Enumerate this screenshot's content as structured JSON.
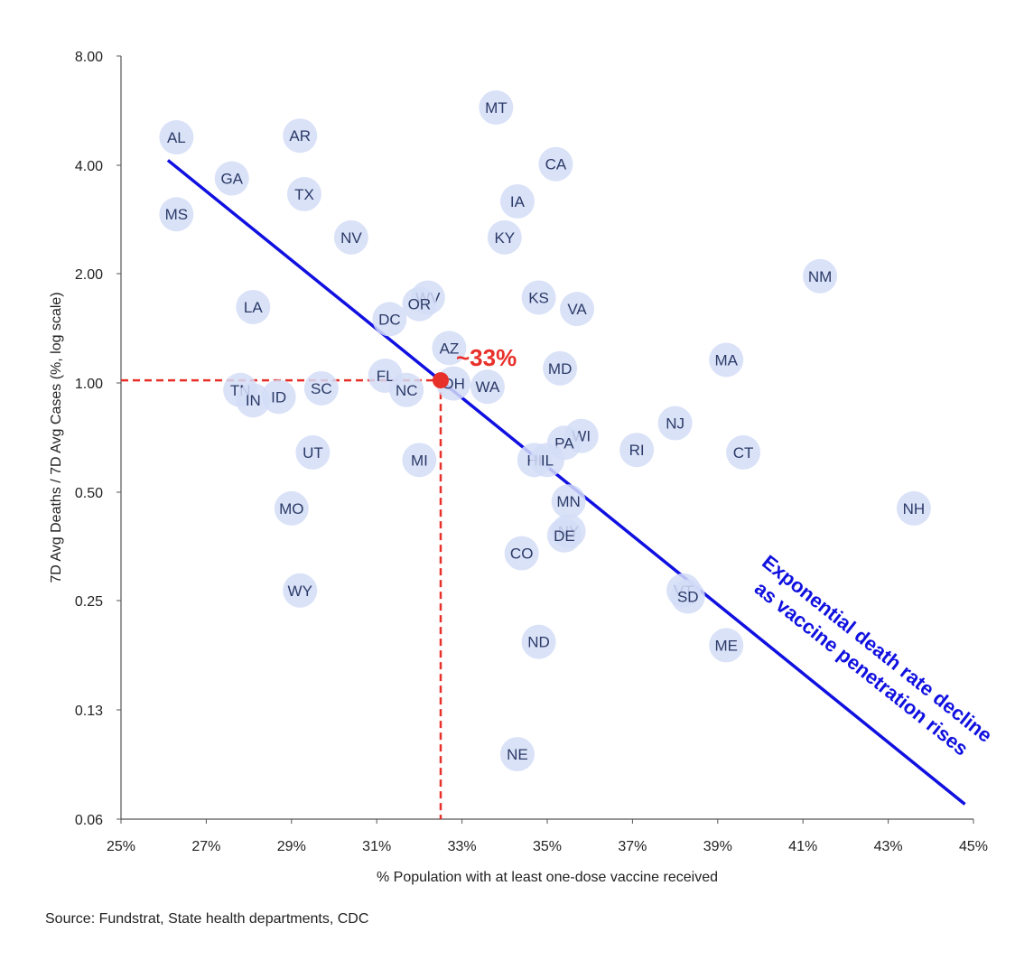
{
  "chart_data": {
    "type": "scatter",
    "xlabel": "% Population with at least one-dose vaccine received",
    "ylabel": "7D Avg Deaths / 7D Avg Cases (%, log scale)",
    "yscale": "log",
    "xlim": [
      25,
      45
    ],
    "ylim": [
      0.06,
      8.0
    ],
    "x_ticks": [
      "25%",
      "27%",
      "29%",
      "31%",
      "33%",
      "35%",
      "37%",
      "39%",
      "41%",
      "43%",
      "45%"
    ],
    "x_tick_values": [
      25,
      27,
      29,
      31,
      33,
      35,
      37,
      39,
      41,
      43,
      45
    ],
    "y_ticks": [
      "8.00",
      "4.00",
      "2.00",
      "1.00",
      "0.50",
      "0.25",
      "0.13",
      "0.06"
    ],
    "y_tick_values": [
      8.0,
      4.0,
      2.0,
      1.0,
      0.5,
      0.25,
      0.13,
      0.06
    ],
    "grid": false,
    "colors": {
      "point": "#d3ddf7",
      "point_text": "#2b3a67",
      "trend": "#1010e0",
      "highlight": "#e8302a"
    },
    "points": [
      {
        "label": "AL",
        "x": 26.3,
        "y": 4.75
      },
      {
        "label": "AR",
        "x": 29.2,
        "y": 4.8
      },
      {
        "label": "MT",
        "x": 33.8,
        "y": 5.75
      },
      {
        "label": "CA",
        "x": 35.2,
        "y": 4.0
      },
      {
        "label": "GA",
        "x": 27.6,
        "y": 3.65
      },
      {
        "label": "TX",
        "x": 29.3,
        "y": 3.3
      },
      {
        "label": "IA",
        "x": 34.3,
        "y": 3.15
      },
      {
        "label": "MS",
        "x": 26.3,
        "y": 2.9
      },
      {
        "label": "NV",
        "x": 30.4,
        "y": 2.5
      },
      {
        "label": "KY",
        "x": 34.0,
        "y": 2.5
      },
      {
        "label": "NM",
        "x": 41.4,
        "y": 1.95
      },
      {
        "label": "WV",
        "x": 32.2,
        "y": 1.7
      },
      {
        "label": "OR",
        "x": 32.0,
        "y": 1.63
      },
      {
        "label": "KS",
        "x": 34.8,
        "y": 1.7
      },
      {
        "label": "LA",
        "x": 28.1,
        "y": 1.6
      },
      {
        "label": "VA",
        "x": 35.7,
        "y": 1.58
      },
      {
        "label": "DC",
        "x": 31.3,
        "y": 1.48
      },
      {
        "label": "AZ",
        "x": 32.7,
        "y": 1.23
      },
      {
        "label": "MA",
        "x": 39.2,
        "y": 1.14
      },
      {
        "label": "MD",
        "x": 35.3,
        "y": 1.08
      },
      {
        "label": "FL",
        "x": 31.2,
        "y": 1.03
      },
      {
        "label": "OH",
        "x": 32.8,
        "y": 0.98
      },
      {
        "label": "WA",
        "x": 33.6,
        "y": 0.96
      },
      {
        "label": "SC",
        "x": 29.7,
        "y": 0.95
      },
      {
        "label": "NC",
        "x": 31.7,
        "y": 0.94
      },
      {
        "label": "TN",
        "x": 27.8,
        "y": 0.94
      },
      {
        "label": "ID",
        "x": 28.7,
        "y": 0.9
      },
      {
        "label": "IN",
        "x": 28.1,
        "y": 0.88
      },
      {
        "label": "NJ",
        "x": 38.0,
        "y": 0.76
      },
      {
        "label": "WI",
        "x": 35.8,
        "y": 0.7
      },
      {
        "label": "PA",
        "x": 35.4,
        "y": 0.67
      },
      {
        "label": "RI",
        "x": 37.1,
        "y": 0.64
      },
      {
        "label": "CT",
        "x": 39.6,
        "y": 0.63
      },
      {
        "label": "UT",
        "x": 29.5,
        "y": 0.63
      },
      {
        "label": "MI",
        "x": 32.0,
        "y": 0.6
      },
      {
        "label": "HI",
        "x": 34.7,
        "y": 0.6
      },
      {
        "label": "IL",
        "x": 35.0,
        "y": 0.6
      },
      {
        "label": "MN",
        "x": 35.5,
        "y": 0.46
      },
      {
        "label": "NH",
        "x": 43.6,
        "y": 0.44
      },
      {
        "label": "MO",
        "x": 29.0,
        "y": 0.44
      },
      {
        "label": "NY",
        "x": 35.5,
        "y": 0.38
      },
      {
        "label": "DE",
        "x": 35.4,
        "y": 0.37
      },
      {
        "label": "CO",
        "x": 34.4,
        "y": 0.33
      },
      {
        "label": "VT",
        "x": 38.2,
        "y": 0.26
      },
      {
        "label": "SD",
        "x": 38.3,
        "y": 0.25
      },
      {
        "label": "WY",
        "x": 29.2,
        "y": 0.26
      },
      {
        "label": "ND",
        "x": 34.8,
        "y": 0.187
      },
      {
        "label": "ME",
        "x": 39.2,
        "y": 0.183
      },
      {
        "label": "NE",
        "x": 34.3,
        "y": 0.091
      }
    ],
    "trendline": {
      "x_start": 26.1,
      "y_start": 4.1,
      "x_end": 44.8,
      "y_end": 0.066
    },
    "highlight": {
      "x": 32.5,
      "y": 1.0,
      "label": "~33%"
    },
    "annotation": {
      "line1": "Exponential death rate decline",
      "line2": "as vaccine penetration rises"
    }
  },
  "source": "Source: Fundstrat, State health departments, CDC"
}
